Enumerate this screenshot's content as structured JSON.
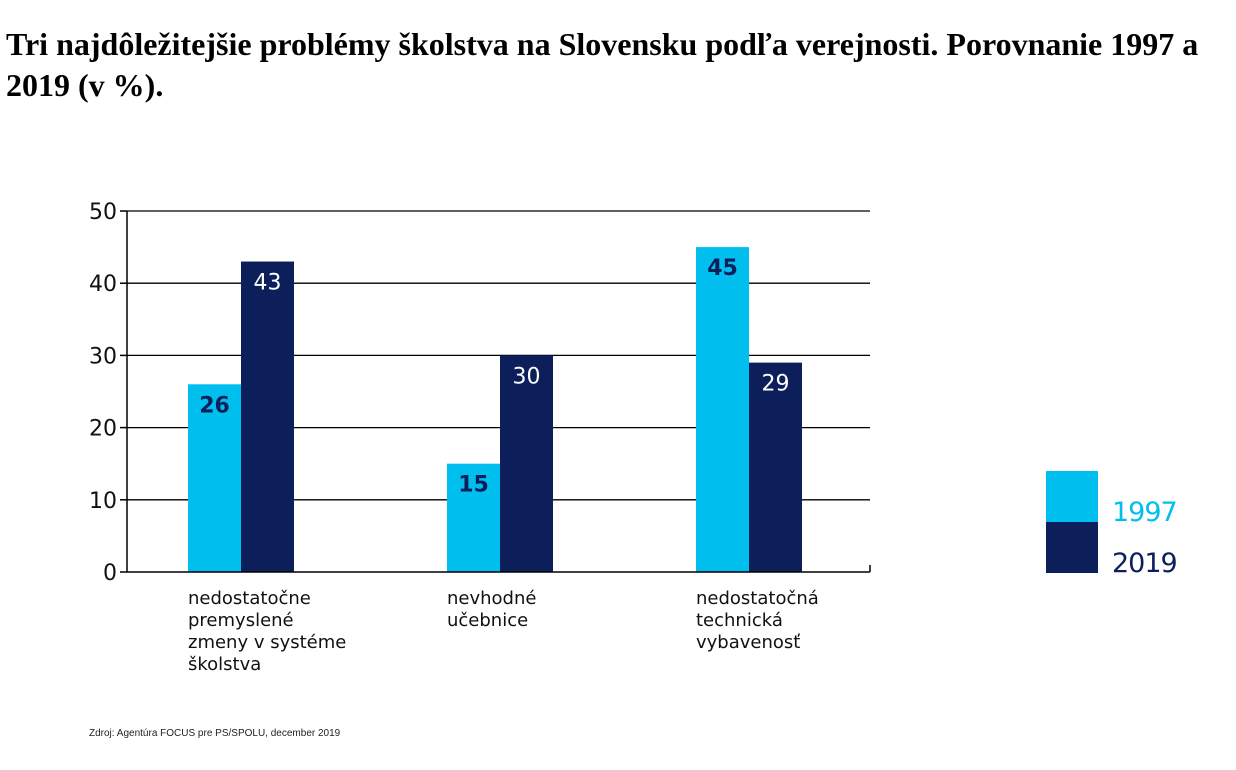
{
  "title": "Tri najdôležitejšie problémy školstva na Slovensku podľa verejnosti. Porovnanie 1997 a 2019 (v %).",
  "source": "Zdroj: Agentúra FOCUS pre PS/SPOLU, december 2019",
  "colors": {
    "c1997": "#00BFEF",
    "c2019": "#0C1F5A",
    "grid": "#000000"
  },
  "chart_data": {
    "type": "bar",
    "categories": [
      [
        "nedostatočne",
        "premyslené",
        "zmeny v systéme",
        "školstva"
      ],
      [
        "nevhodné",
        "učebnice"
      ],
      [
        "nedostatočná",
        "technická",
        "vybavenosť"
      ]
    ],
    "series": [
      {
        "name": "1997",
        "values": [
          26,
          15,
          45
        ]
      },
      {
        "name": "2019",
        "values": [
          43,
          30,
          29
        ]
      }
    ],
    "ylim": [
      0,
      50
    ],
    "yticks": [
      0,
      10,
      20,
      30,
      40,
      50
    ],
    "grid": true,
    "legend": "right"
  }
}
